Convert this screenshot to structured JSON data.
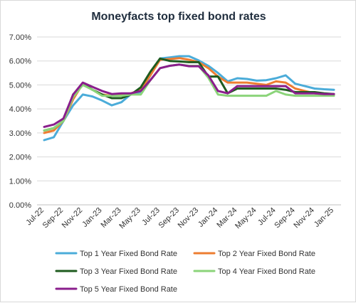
{
  "chart_data": {
    "type": "line",
    "title": "Moneyfacts top fixed bond rates",
    "xlabel": "",
    "ylabel": "",
    "ylim": [
      0,
      7
    ],
    "y_ticks": [
      "0.00%",
      "1.00%",
      "2.00%",
      "3.00%",
      "4.00%",
      "5.00%",
      "6.00%",
      "7.00%"
    ],
    "x_tick_labels": [
      "Jul-22",
      "Sep-22",
      "Nov-22",
      "Jan-23",
      "Mar-23",
      "May-23",
      "Jul-23",
      "Sep-23",
      "Nov-23",
      "Jan-24",
      "Mar-24",
      "May-24",
      "Jul-24",
      "Sep-24",
      "Nov-24",
      "Jan-25"
    ],
    "x": [
      "Jul-22",
      "Aug-22",
      "Sep-22",
      "Oct-22",
      "Nov-22",
      "Dec-22",
      "Jan-23",
      "Feb-23",
      "Mar-23",
      "Apr-23",
      "May-23",
      "Jun-23",
      "Jul-23",
      "Aug-23",
      "Sep-23",
      "Oct-23",
      "Nov-23",
      "Dec-23",
      "Jan-24",
      "Feb-24",
      "Mar-24",
      "Apr-24",
      "May-24",
      "Jun-24",
      "Jul-24",
      "Aug-24",
      "Sep-24",
      "Oct-24",
      "Nov-24",
      "Dec-24",
      "Jan-25"
    ],
    "grid": "horizontal",
    "legend_position": "bottom",
    "series": [
      {
        "name": "Top 1 Year Fixed Bond Rate",
        "color": "#4bacd9",
        "values": [
          2.7,
          2.82,
          3.5,
          4.15,
          4.6,
          4.52,
          4.35,
          4.15,
          4.28,
          4.62,
          4.7,
          5.4,
          6.1,
          6.15,
          6.2,
          6.2,
          6.02,
          5.8,
          5.5,
          5.15,
          5.28,
          5.25,
          5.18,
          5.2,
          5.28,
          5.4,
          5.05,
          4.95,
          4.85,
          4.82,
          4.8
        ]
      },
      {
        "name": "Top 2 Year Fixed Bond Rate",
        "color": "#ed7d31",
        "values": [
          3.0,
          3.1,
          3.5,
          4.4,
          5.05,
          4.8,
          4.6,
          4.55,
          4.6,
          4.65,
          4.8,
          5.4,
          6.05,
          6.08,
          6.12,
          6.05,
          5.95,
          5.7,
          5.35,
          5.1,
          5.1,
          5.1,
          5.05,
          5.0,
          5.15,
          5.1,
          4.85,
          4.75,
          4.65,
          4.62,
          4.6
        ]
      },
      {
        "name": "Top 3 Year Fixed Bond Rate",
        "color": "#1e5b1e",
        "values": [
          3.1,
          3.2,
          3.5,
          4.6,
          5.05,
          4.8,
          4.6,
          4.45,
          4.45,
          4.6,
          4.9,
          5.55,
          6.1,
          6.0,
          5.98,
          5.95,
          5.95,
          5.35,
          5.35,
          4.65,
          4.85,
          4.85,
          4.85,
          4.85,
          4.85,
          4.8,
          4.7,
          4.7,
          4.7,
          4.65,
          4.62
        ]
      },
      {
        "name": "Top 4 Year Fixed Bond Rate",
        "color": "#8bd47a",
        "values": [
          3.1,
          3.2,
          3.5,
          4.5,
          5.0,
          4.8,
          4.55,
          4.55,
          4.55,
          4.6,
          4.6,
          5.2,
          5.7,
          5.8,
          5.85,
          5.8,
          5.8,
          5.3,
          4.6,
          4.55,
          4.55,
          4.55,
          4.55,
          4.55,
          4.75,
          4.6,
          4.55,
          4.55,
          4.55,
          4.55,
          4.55
        ]
      },
      {
        "name": "Top 5 Year Fixed Bond Rate",
        "color": "#8a1e8c",
        "values": [
          3.25,
          3.35,
          3.6,
          4.6,
          5.1,
          4.92,
          4.75,
          4.62,
          4.65,
          4.65,
          4.75,
          5.2,
          5.7,
          5.8,
          5.85,
          5.78,
          5.78,
          5.4,
          4.75,
          4.65,
          4.95,
          4.95,
          4.95,
          4.95,
          4.95,
          4.95,
          4.65,
          4.65,
          4.65,
          4.62,
          4.62
        ]
      }
    ]
  }
}
